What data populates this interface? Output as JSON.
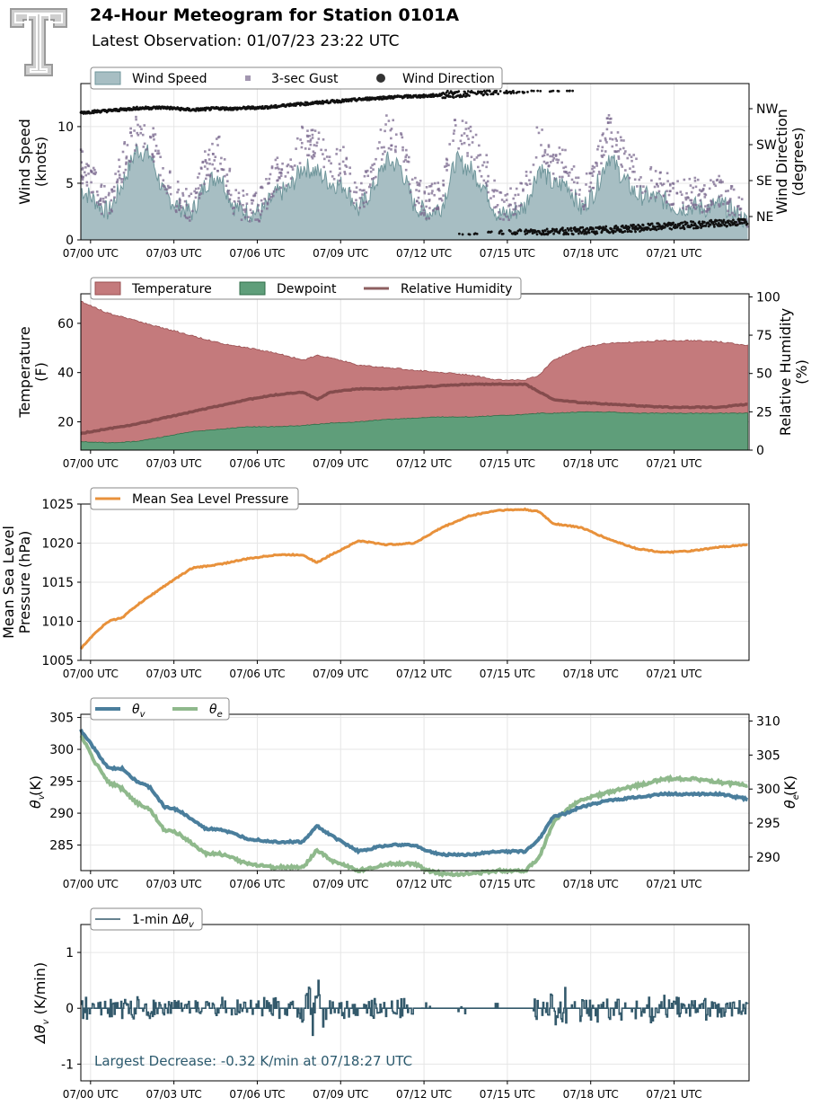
{
  "header": {
    "title": "24-Hour Meteogram for Station 0101A",
    "subtitle": "Latest Observation: 01/07/23 23:22 UTC"
  },
  "x_tick_labels": [
    "07/00 UTC",
    "07/03 UTC",
    "07/06 UTC",
    "07/09 UTC",
    "07/12 UTC",
    "07/15 UTC",
    "07/18 UTC",
    "07/21 UTC"
  ],
  "colors": {
    "wind_fill": "#a7bec3",
    "wind_line": "#6f969b",
    "gust": "#7b6a8f",
    "direction": "#111111",
    "temperature": "#c47a7c",
    "dewpoint": "#5f9e7a",
    "rh": "#7a4445",
    "pressure": "#e8913b",
    "theta_v": "#4a7e9c",
    "theta_e": "#8fb98c",
    "dtheta": "#33596b"
  },
  "chart_data": [
    {
      "id": "wind",
      "type": "area",
      "ylabel": "Wind Speed\n(knots)",
      "y2label": "Wind Direction\n(degrees)",
      "ylim": [
        0,
        13.8
      ],
      "yticks": [
        0,
        5,
        10
      ],
      "y2_ticks": [
        "NE",
        "SE",
        "SW",
        "NW"
      ],
      "legend": [
        "Wind Speed",
        "3-sec Gust",
        "Wind Direction"
      ],
      "x_hours": [
        0,
        0.5,
        1,
        1.5,
        2,
        2.5,
        3,
        3.5,
        4,
        4.5,
        5,
        5.5,
        6,
        6.5,
        7,
        7.5,
        8,
        8.5,
        9,
        9.5,
        10,
        10.5,
        11,
        11.5,
        12,
        12.5,
        13,
        13.5,
        14,
        14.5,
        15,
        15.5,
        16,
        16.5,
        17,
        17.5,
        18,
        18.5,
        19,
        19.5,
        20,
        20.5,
        21,
        21.5,
        22,
        22.5,
        23,
        23.5,
        24
      ],
      "wind_speed": [
        4.5,
        3.5,
        2.4,
        5,
        8,
        7.5,
        4,
        3,
        2.4,
        5,
        5.8,
        3,
        2.4,
        2.5,
        4,
        4.5,
        6.5,
        6,
        5,
        4.8,
        2.6,
        4.5,
        7,
        6.5,
        3,
        2.4,
        3,
        7,
        6.3,
        4.8,
        2.2,
        2.3,
        3,
        6.5,
        4.8,
        5,
        2.7,
        4.3,
        7.5,
        5.5,
        4,
        3.8,
        3.5,
        2.8,
        3,
        2.8,
        3.2,
        2.5,
        1.5
      ],
      "gust": [
        7,
        5,
        3,
        7,
        10,
        9.5,
        6,
        4,
        3,
        7,
        8,
        4,
        3,
        3.5,
        6,
        6.5,
        9,
        8.5,
        7,
        7,
        3.5,
        6.5,
        10,
        9,
        4.5,
        3.5,
        4.5,
        10,
        9,
        7,
        3.5,
        3.5,
        5,
        9.5,
        7,
        7,
        4,
        6,
        10.5,
        8,
        6,
        5.5,
        5,
        4,
        4.5,
        4,
        4.5,
        3.5,
        2.5
      ],
      "direction_deg": [
        305,
        308,
        310,
        313,
        316,
        317,
        318,
        315,
        312,
        314,
        316,
        315,
        317,
        318,
        320,
        325,
        327,
        330,
        333,
        335,
        338,
        341,
        343,
        345,
        346,
        347,
        350,
        352,
        355,
        358,
        360,
        362,
        364,
        366,
        367,
        368,
        369,
        370,
        372,
        374,
        376,
        378,
        380,
        382,
        384,
        386,
        388,
        390,
        392
      ]
    },
    {
      "id": "temperature",
      "type": "area",
      "ylabel": "Temperature\n(F)",
      "y2label": "Relative Humidity\n(%)",
      "ylim": [
        8.5,
        72
      ],
      "yticks": [
        20,
        40,
        60
      ],
      "y2lim": [
        0,
        102
      ],
      "y2ticks": [
        0,
        25,
        50,
        75,
        100
      ],
      "legend": [
        "Temperature",
        "Dewpoint",
        "Relative Humidity"
      ],
      "x_hours": [
        0,
        1,
        2,
        3,
        4,
        5,
        6,
        7,
        8,
        8.5,
        9,
        10,
        11,
        12,
        13,
        14,
        15,
        16,
        16.5,
        17,
        18,
        19,
        20,
        21,
        22,
        23,
        24
      ],
      "temperature": [
        69,
        64,
        61,
        58,
        55,
        52,
        50,
        48,
        45,
        47,
        46,
        43,
        42,
        41,
        40,
        39,
        37,
        37,
        39,
        45,
        50,
        52,
        52.5,
        53,
        53,
        52.5,
        51
      ],
      "dewpoint": [
        12,
        11.5,
        12,
        14,
        16,
        17,
        18,
        18,
        18.5,
        19,
        19.5,
        20,
        21,
        21.5,
        22,
        22,
        22.5,
        23,
        23.5,
        23.5,
        24,
        24,
        23.5,
        23.5,
        23.5,
        23.5,
        23.5
      ],
      "relative_humidity": [
        11,
        14,
        17,
        21,
        25,
        29,
        33,
        36,
        38,
        33,
        38,
        40,
        40,
        41,
        42,
        43,
        43,
        43,
        38,
        33,
        31,
        30,
        29,
        28,
        28,
        28,
        30
      ]
    },
    {
      "id": "pressure",
      "type": "line",
      "ylabel": "Mean Sea Level\nPressure (hPa)",
      "ylim": [
        1005,
        1025
      ],
      "yticks": [
        1005,
        1010,
        1015,
        1020,
        1025
      ],
      "legend": [
        "Mean Sea Level Pressure"
      ],
      "x_hours": [
        0,
        0.5,
        1,
        1.5,
        2,
        3,
        4,
        5,
        6,
        7,
        8,
        8.5,
        9,
        10,
        11,
        12,
        13,
        14,
        15,
        16,
        16.5,
        17,
        18,
        19,
        20,
        21,
        22,
        23,
        24
      ],
      "pressure": [
        1006.5,
        1008.5,
        1010,
        1010.5,
        1012,
        1014.5,
        1016.8,
        1017.3,
        1018,
        1018.5,
        1018.5,
        1017.5,
        1018.5,
        1020.3,
        1019.8,
        1020,
        1022,
        1023.5,
        1024.2,
        1024.3,
        1024,
        1022.5,
        1022,
        1020.5,
        1019.3,
        1018.8,
        1019,
        1019.5,
        1019.8
      ]
    },
    {
      "id": "theta",
      "type": "line",
      "ylabel": "θv (K)",
      "y2label": "θe (K)",
      "ylim": [
        281,
        305.5
      ],
      "yticks": [
        285,
        290,
        295,
        300,
        305
      ],
      "y2lim": [
        288,
        311
      ],
      "y2ticks": [
        290,
        295,
        300,
        305,
        310
      ],
      "legend": [
        "θv",
        "θe"
      ],
      "x_hours": [
        0,
        0.5,
        1,
        1.5,
        2,
        2.5,
        3,
        3.5,
        4,
        4.5,
        5,
        6,
        7,
        8,
        8.5,
        9,
        10,
        11,
        12,
        12.5,
        13,
        14,
        15,
        16,
        16.5,
        17,
        17.5,
        18,
        19,
        20,
        21,
        22,
        23,
        24
      ],
      "theta_v": [
        303,
        300,
        297,
        297,
        295,
        294,
        291,
        290.5,
        289,
        287.5,
        287.5,
        286,
        285.5,
        285.5,
        288,
        286.5,
        284,
        285,
        285,
        284,
        283.5,
        283.5,
        284,
        284,
        286,
        289.5,
        290,
        291,
        292,
        292.5,
        293,
        293,
        293,
        292.2
      ],
      "theta_e": [
        308,
        304,
        301,
        300,
        298,
        297,
        294,
        293.5,
        292,
        290.5,
        290.5,
        289,
        288.5,
        288.5,
        291,
        289.5,
        288,
        289,
        289,
        288,
        287.5,
        287.5,
        288,
        288,
        290,
        295,
        297,
        298.5,
        299.5,
        300.5,
        301.5,
        301.5,
        301,
        300.5
      ]
    },
    {
      "id": "dtheta",
      "type": "line",
      "ylabel": "Δθv (K/min)",
      "ylim": [
        -1.3,
        1.5
      ],
      "yticks": [
        -1,
        0,
        1
      ],
      "legend": [
        "1-min Δθv"
      ],
      "annotation": "Largest Decrease: -0.32 K/min at 07/18:27 UTC",
      "x_hours": [
        0,
        0.5,
        1,
        1.5,
        2,
        2.5,
        3,
        3.5,
        4,
        4.5,
        5,
        5.5,
        6,
        6.5,
        7,
        7.5,
        8,
        8.5,
        9,
        9.5,
        10,
        10.5,
        11,
        11.5,
        12,
        12.5,
        13,
        13.5,
        14,
        14.5,
        15,
        15.5,
        16,
        16.5,
        17,
        17.5,
        18,
        18.5,
        19,
        19.5,
        20,
        20.5,
        21,
        21.5,
        22,
        22.5,
        23,
        23.5,
        24
      ],
      "dtheta": [
        -0.1,
        -0.15,
        0.1,
        -0.1,
        0.15,
        -0.1,
        0.1,
        -0.15,
        0.1,
        -0.1,
        0.15,
        -0.1,
        0.1,
        -0.15,
        0.15,
        -0.1,
        0.2,
        0.5,
        -0.1,
        0.15,
        -0.1,
        0.1,
        -0.1,
        0.1,
        0,
        0,
        0,
        0,
        0,
        0,
        0,
        0,
        0.1,
        0.3,
        -0.3,
        0.4,
        -0.25,
        0.3,
        -0.2,
        0.25,
        -0.15,
        0.2,
        -0.15,
        0.15,
        -0.1,
        0.15,
        -0.1,
        0.1,
        -0.05
      ]
    }
  ]
}
